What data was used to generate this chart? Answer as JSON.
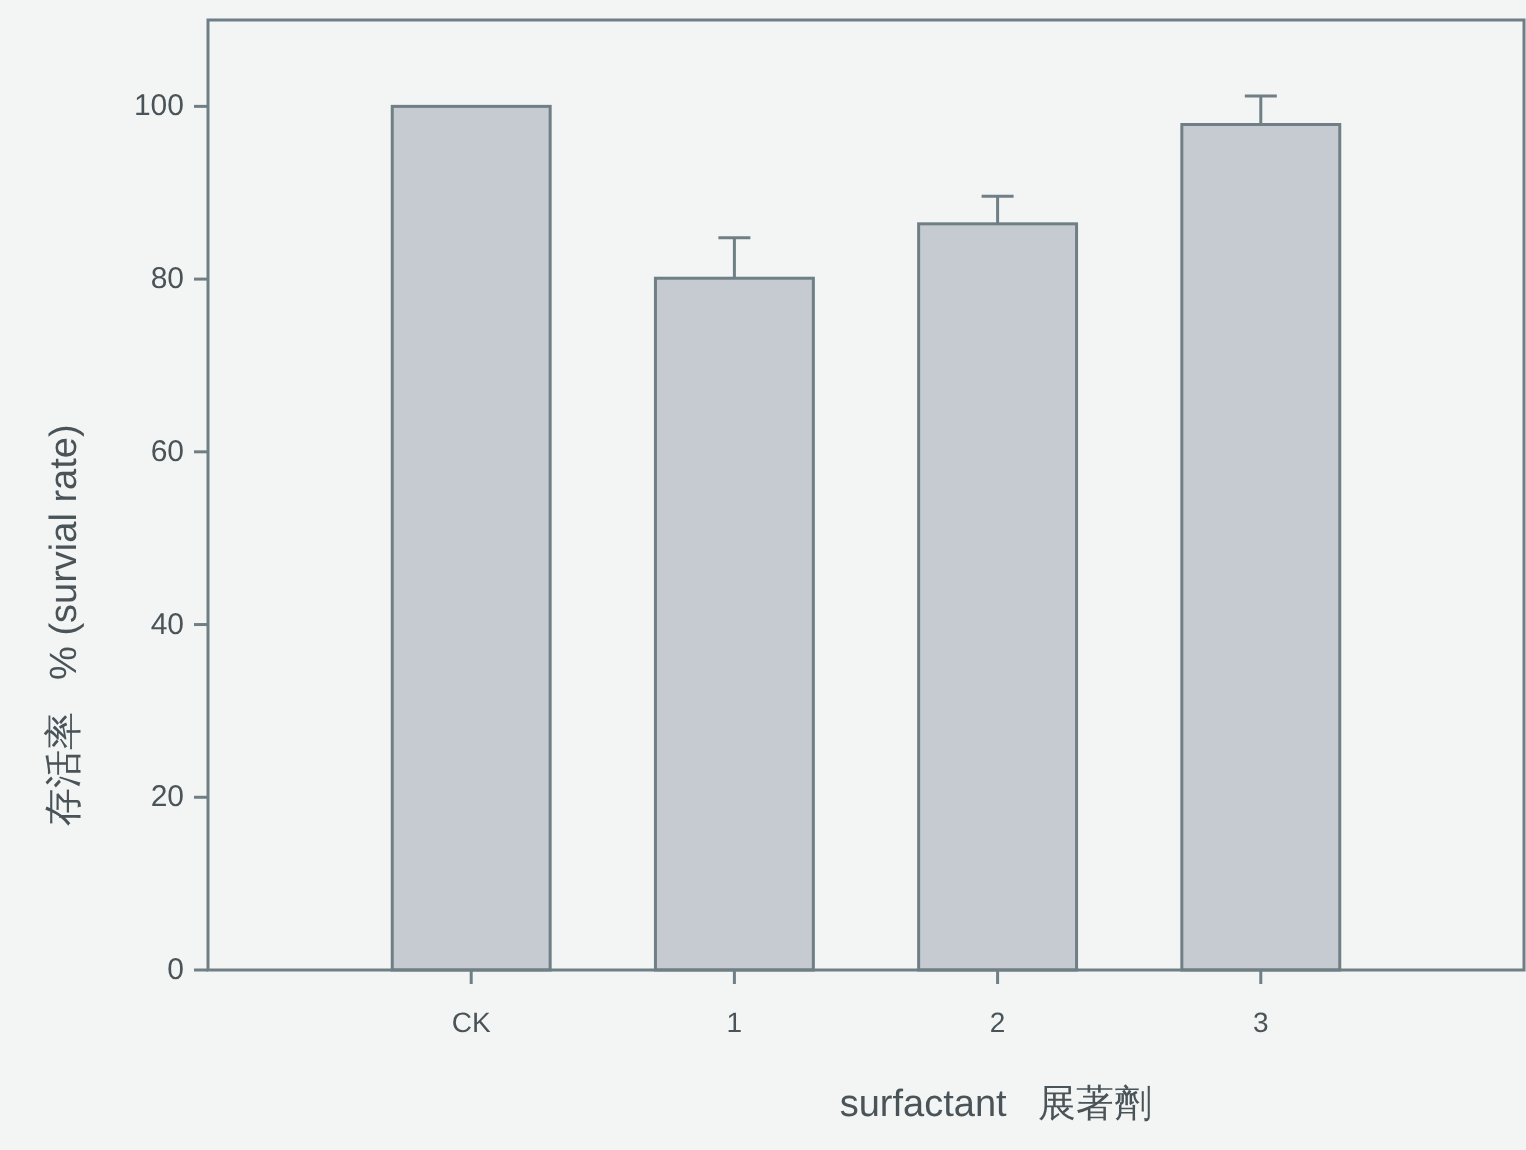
{
  "chart_data": {
    "type": "bar",
    "xlabel": "surfactant   展著劑",
    "ylabel": "存活率   % (survial rate)",
    "categories": [
      "CK",
      "1",
      "2",
      "3"
    ],
    "values": [
      100,
      80.1,
      86.4,
      97.9
    ],
    "errors": [
      null,
      [
        80.1,
        84.8
      ],
      [
        86.4,
        89.6
      ],
      [
        97.9,
        101.2
      ]
    ],
    "color": "#c5cbd0",
    "ylim": [
      0,
      110
    ],
    "yticks": [
      0,
      20,
      40,
      60,
      80,
      100
    ],
    "grid": false
  }
}
